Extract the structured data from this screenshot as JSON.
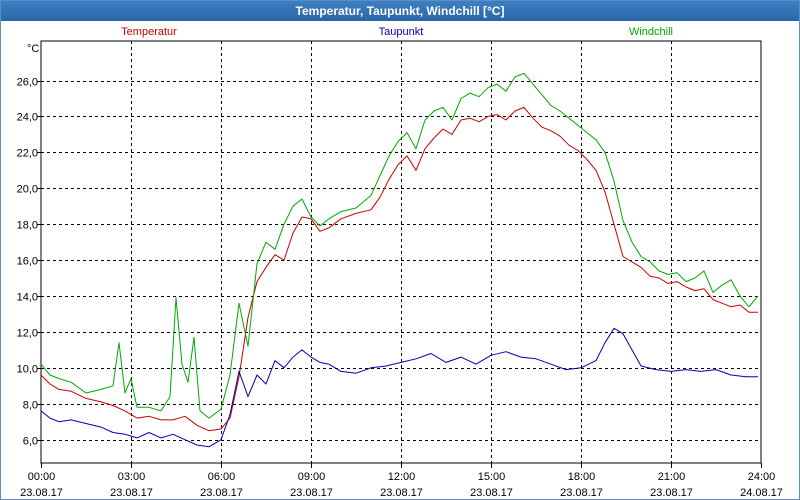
{
  "window": {
    "title": "Temperatur, Taupunkt, Windchill [°C]"
  },
  "chart_data": {
    "type": "line",
    "title": "Temperatur, Taupunkt, Windchill [°C]",
    "ylabel": "°C",
    "xlabel": "",
    "ylim": [
      4.7,
      28.2
    ],
    "xlim": [
      0,
      24
    ],
    "grid": true,
    "yticks": [
      6,
      8,
      10,
      12,
      14,
      16,
      18,
      20,
      22,
      24,
      26
    ],
    "ytick_labels": [
      "6,0",
      "8,0",
      "10,0",
      "12,0",
      "14,0",
      "16,0",
      "18,0",
      "20,0",
      "22,0",
      "24,0",
      "26,0"
    ],
    "xticks": [
      0,
      3,
      6,
      9,
      12,
      15,
      18,
      21,
      24
    ],
    "xtick_labels": [
      {
        "time": "00:00",
        "date": "23.08.17"
      },
      {
        "time": "03:00",
        "date": "23.08.17"
      },
      {
        "time": "06:00",
        "date": "23.08.17"
      },
      {
        "time": "09:00",
        "date": "23.08.17"
      },
      {
        "time": "12:00",
        "date": "23.08.17"
      },
      {
        "time": "15:00",
        "date": "23.08.17"
      },
      {
        "time": "18:00",
        "date": "23.08.17"
      },
      {
        "time": "21:00",
        "date": "23.08.17"
      },
      {
        "time": "24:00",
        "date": "24.08.17"
      }
    ],
    "legend_position": "top",
    "series": [
      {
        "name": "Temperatur",
        "color": "#cc0000",
        "x": [
          0,
          0.3,
          0.6,
          1.0,
          1.5,
          2.0,
          2.4,
          2.8,
          3.2,
          3.6,
          4.0,
          4.4,
          4.8,
          5.2,
          5.6,
          6.0,
          6.3,
          6.6,
          6.9,
          7.2,
          7.5,
          7.8,
          8.1,
          8.4,
          8.7,
          9.0,
          9.3,
          9.6,
          10.0,
          10.5,
          11.0,
          11.3,
          11.6,
          11.9,
          12.2,
          12.5,
          12.8,
          13.1,
          13.4,
          13.7,
          14.0,
          14.3,
          14.6,
          14.9,
          15.2,
          15.5,
          15.8,
          16.1,
          16.4,
          16.7,
          17.0,
          17.3,
          17.6,
          17.9,
          18.2,
          18.5,
          18.8,
          19.1,
          19.4,
          19.7,
          20.0,
          20.3,
          20.6,
          20.9,
          21.2,
          21.5,
          21.8,
          22.1,
          22.4,
          22.7,
          23.0,
          23.3,
          23.6,
          23.9
        ],
        "values": [
          9.6,
          9.1,
          8.8,
          8.7,
          8.3,
          8.1,
          7.9,
          7.6,
          7.2,
          7.3,
          7.1,
          7.1,
          7.3,
          6.8,
          6.5,
          6.6,
          7.2,
          9.5,
          12.8,
          14.8,
          15.6,
          16.3,
          16.0,
          17.5,
          18.4,
          18.3,
          17.6,
          17.8,
          18.3,
          18.6,
          18.8,
          19.5,
          20.5,
          21.3,
          21.8,
          21.0,
          22.2,
          22.8,
          23.3,
          23.0,
          23.8,
          23.9,
          23.7,
          24.0,
          24.1,
          23.8,
          24.3,
          24.5,
          23.9,
          23.4,
          23.2,
          22.9,
          22.4,
          22.1,
          21.6,
          21.0,
          19.8,
          18.0,
          16.2,
          15.9,
          15.6,
          15.1,
          15.0,
          14.7,
          14.8,
          14.5,
          14.3,
          14.4,
          13.8,
          13.6,
          13.4,
          13.5,
          13.1,
          13.1
        ]
      },
      {
        "name": "Taupunkt",
        "color": "#0000b4",
        "x": [
          0,
          0.3,
          0.6,
          1.0,
          1.5,
          2.0,
          2.4,
          2.8,
          3.2,
          3.6,
          4.0,
          4.4,
          4.8,
          5.2,
          5.6,
          6.0,
          6.3,
          6.6,
          6.9,
          7.2,
          7.5,
          7.8,
          8.1,
          8.4,
          8.7,
          9.0,
          9.3,
          9.6,
          10.0,
          10.5,
          11.0,
          11.5,
          12.0,
          12.5,
          13.0,
          13.5,
          14.0,
          14.5,
          15.0,
          15.5,
          16.0,
          16.5,
          17.0,
          17.5,
          18.0,
          18.5,
          18.8,
          19.1,
          19.4,
          19.7,
          20.0,
          20.5,
          21.0,
          21.5,
          22.0,
          22.5,
          23.0,
          23.5,
          23.9
        ],
        "values": [
          7.6,
          7.2,
          7.0,
          7.1,
          6.9,
          6.7,
          6.4,
          6.3,
          6.1,
          6.4,
          6.1,
          6.3,
          6.0,
          5.7,
          5.6,
          6.0,
          7.4,
          9.8,
          8.4,
          9.6,
          9.1,
          10.4,
          10.0,
          10.6,
          11.0,
          10.6,
          10.3,
          10.2,
          9.8,
          9.7,
          10.0,
          10.1,
          10.3,
          10.5,
          10.8,
          10.3,
          10.6,
          10.2,
          10.7,
          10.9,
          10.6,
          10.5,
          10.2,
          9.9,
          10.0,
          10.4,
          11.4,
          12.2,
          11.9,
          11.0,
          10.1,
          9.9,
          9.8,
          9.9,
          9.8,
          9.9,
          9.6,
          9.5,
          9.5
        ]
      },
      {
        "name": "Windchill",
        "color": "#00aa00",
        "x": [
          0,
          0.3,
          0.6,
          1.0,
          1.5,
          2.0,
          2.4,
          2.6,
          2.8,
          3.0,
          3.2,
          3.6,
          4.0,
          4.3,
          4.5,
          4.7,
          4.9,
          5.1,
          5.3,
          5.6,
          6.0,
          6.3,
          6.6,
          6.9,
          7.2,
          7.5,
          7.8,
          8.1,
          8.4,
          8.7,
          9.0,
          9.3,
          9.6,
          10.0,
          10.5,
          11.0,
          11.3,
          11.6,
          11.9,
          12.2,
          12.5,
          12.8,
          13.1,
          13.4,
          13.7,
          14.0,
          14.3,
          14.6,
          14.9,
          15.2,
          15.5,
          15.8,
          16.1,
          16.4,
          16.7,
          17.0,
          17.3,
          17.6,
          17.9,
          18.2,
          18.5,
          18.8,
          19.1,
          19.4,
          19.7,
          20.0,
          20.3,
          20.6,
          20.9,
          21.2,
          21.5,
          21.8,
          22.1,
          22.4,
          22.7,
          23.0,
          23.3,
          23.6,
          23.9
        ],
        "values": [
          10.2,
          9.6,
          9.4,
          9.2,
          8.6,
          8.8,
          9.0,
          11.4,
          8.6,
          9.4,
          7.8,
          7.8,
          7.6,
          8.4,
          13.9,
          10.2,
          9.2,
          11.7,
          7.6,
          7.2,
          7.7,
          9.6,
          13.6,
          11.2,
          15.8,
          17.0,
          16.6,
          18.0,
          19.0,
          19.4,
          18.4,
          17.9,
          18.3,
          18.7,
          18.9,
          19.6,
          20.7,
          21.8,
          22.6,
          23.1,
          22.2,
          23.8,
          24.3,
          24.5,
          23.8,
          25.0,
          25.3,
          25.1,
          25.6,
          25.8,
          25.4,
          26.2,
          26.4,
          25.8,
          25.2,
          24.6,
          24.3,
          23.9,
          23.5,
          23.1,
          22.7,
          22.0,
          20.4,
          18.2,
          17.0,
          16.2,
          15.9,
          15.4,
          15.2,
          15.3,
          14.8,
          15.0,
          15.4,
          14.2,
          14.6,
          14.9,
          14.0,
          13.4,
          14.0
        ]
      }
    ]
  }
}
